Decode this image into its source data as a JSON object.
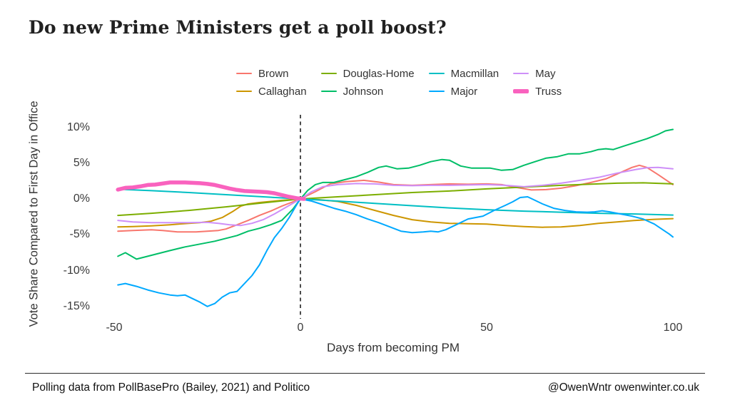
{
  "title": "Do new Prime Ministers get a poll boost?",
  "footer": {
    "left": "Polling data from PollBasePro (Bailey, 2021) and Politico",
    "right": "@OwenWntr owenwinter.co.uk"
  },
  "chart_data": {
    "type": "line",
    "title": "Do new Prime Ministers get a poll boost?",
    "xlabel": "Days from becoming PM",
    "ylabel": "Vote Share Compared to First Day in Office",
    "x_range_days": [
      -50,
      100
    ],
    "y_range_pct": [
      -15,
      10
    ],
    "grid": false,
    "background": "#ffffff",
    "legend_position": "top",
    "reference_line": {
      "axis": "x",
      "value": 0,
      "style": "dashed",
      "color": "#000000"
    },
    "x_ticks": [
      {
        "value": -50,
        "label": "-50"
      },
      {
        "value": 0,
        "label": "0"
      },
      {
        "value": 50,
        "label": "50"
      },
      {
        "value": 100,
        "label": "100"
      }
    ],
    "y_ticks": [
      {
        "value": 10,
        "label": "10%"
      },
      {
        "value": 5,
        "label": "5%"
      },
      {
        "value": 0,
        "label": "0%"
      },
      {
        "value": -5,
        "label": "-5%"
      },
      {
        "value": -10,
        "label": "-10%"
      },
      {
        "value": -15,
        "label": "-15%"
      }
    ],
    "series": [
      {
        "name": "Brown",
        "color": "#F8766D",
        "width": 2,
        "points": [
          [
            -49,
            -4.5
          ],
          [
            -45,
            -4.4
          ],
          [
            -40,
            -4.3
          ],
          [
            -37,
            -4.4
          ],
          [
            -33,
            -4.6
          ],
          [
            -28,
            -4.6
          ],
          [
            -25,
            -4.5
          ],
          [
            -22,
            -4.4
          ],
          [
            -20,
            -4.2
          ],
          [
            -17,
            -3.6
          ],
          [
            -14,
            -3.0
          ],
          [
            -11,
            -2.3
          ],
          [
            -8,
            -1.7
          ],
          [
            -5,
            -1.0
          ],
          [
            -2,
            -0.4
          ],
          [
            0,
            0
          ],
          [
            4,
            1.0
          ],
          [
            8,
            2.1
          ],
          [
            12,
            2.4
          ],
          [
            17,
            2.6
          ],
          [
            21,
            2.35
          ],
          [
            25,
            2.0
          ],
          [
            30,
            1.9
          ],
          [
            35,
            2.0
          ],
          [
            40,
            2.1
          ],
          [
            45,
            2.05
          ],
          [
            50,
            2.1
          ],
          [
            54,
            2.0
          ],
          [
            58,
            1.6
          ],
          [
            62,
            1.25
          ],
          [
            66,
            1.3
          ],
          [
            70,
            1.5
          ],
          [
            74,
            1.85
          ],
          [
            78,
            2.3
          ],
          [
            82,
            2.8
          ],
          [
            86,
            3.7
          ],
          [
            89,
            4.4
          ],
          [
            91,
            4.7
          ],
          [
            93,
            4.4
          ],
          [
            96,
            3.4
          ],
          [
            98,
            2.7
          ],
          [
            100,
            2.0
          ]
        ]
      },
      {
        "name": "Callaghan",
        "color": "#CD9600",
        "width": 2,
        "points": [
          [
            -49,
            -3.9
          ],
          [
            -45,
            -3.85
          ],
          [
            -40,
            -3.75
          ],
          [
            -35,
            -3.6
          ],
          [
            -30,
            -3.4
          ],
          [
            -27,
            -3.3
          ],
          [
            -24,
            -3.1
          ],
          [
            -21,
            -2.6
          ],
          [
            -18,
            -1.7
          ],
          [
            -16,
            -1.0
          ],
          [
            -14,
            -0.7
          ],
          [
            -11,
            -0.5
          ],
          [
            -8,
            -0.35
          ],
          [
            -5,
            -0.2
          ],
          [
            0,
            0
          ],
          [
            5,
            -0.1
          ],
          [
            10,
            -0.35
          ],
          [
            15,
            -0.9
          ],
          [
            20,
            -1.6
          ],
          [
            25,
            -2.3
          ],
          [
            30,
            -2.9
          ],
          [
            35,
            -3.2
          ],
          [
            40,
            -3.4
          ],
          [
            45,
            -3.45
          ],
          [
            50,
            -3.5
          ],
          [
            55,
            -3.7
          ],
          [
            60,
            -3.85
          ],
          [
            65,
            -3.95
          ],
          [
            70,
            -3.9
          ],
          [
            75,
            -3.7
          ],
          [
            80,
            -3.4
          ],
          [
            85,
            -3.2
          ],
          [
            90,
            -3.0
          ],
          [
            95,
            -2.85
          ],
          [
            100,
            -2.75
          ]
        ]
      },
      {
        "name": "Douglas-Home",
        "color": "#7CAE00",
        "width": 2,
        "points": [
          [
            -49,
            -2.3
          ],
          [
            -40,
            -2.0
          ],
          [
            -30,
            -1.6
          ],
          [
            -20,
            -1.1
          ],
          [
            -10,
            -0.55
          ],
          [
            0,
            0
          ],
          [
            10,
            0.3
          ],
          [
            20,
            0.6
          ],
          [
            30,
            0.9
          ],
          [
            40,
            1.1
          ],
          [
            50,
            1.4
          ],
          [
            60,
            1.65
          ],
          [
            70,
            1.9
          ],
          [
            80,
            2.1
          ],
          [
            85,
            2.2
          ],
          [
            92,
            2.25
          ],
          [
            100,
            2.1
          ]
        ]
      },
      {
        "name": "Johnson",
        "color": "#00BE67",
        "width": 2,
        "points": [
          [
            -49,
            -8.0
          ],
          [
            -47,
            -7.5
          ],
          [
            -44,
            -8.4
          ],
          [
            -41,
            -8.0
          ],
          [
            -38,
            -7.6
          ],
          [
            -35,
            -7.2
          ],
          [
            -31,
            -6.7
          ],
          [
            -27,
            -6.3
          ],
          [
            -23,
            -5.9
          ],
          [
            -20,
            -5.5
          ],
          [
            -17,
            -5.1
          ],
          [
            -14,
            -4.5
          ],
          [
            -11,
            -4.1
          ],
          [
            -8,
            -3.6
          ],
          [
            -5,
            -3.0
          ],
          [
            -2,
            -1.4
          ],
          [
            0,
            0
          ],
          [
            2,
            1.2
          ],
          [
            4,
            2.0
          ],
          [
            6,
            2.3
          ],
          [
            9,
            2.3
          ],
          [
            12,
            2.7
          ],
          [
            15,
            3.1
          ],
          [
            18,
            3.7
          ],
          [
            21,
            4.4
          ],
          [
            23,
            4.6
          ],
          [
            26,
            4.2
          ],
          [
            29,
            4.3
          ],
          [
            32,
            4.7
          ],
          [
            35,
            5.2
          ],
          [
            38,
            5.5
          ],
          [
            40,
            5.4
          ],
          [
            43,
            4.6
          ],
          [
            46,
            4.3
          ],
          [
            48,
            4.3
          ],
          [
            51,
            4.3
          ],
          [
            54,
            4.0
          ],
          [
            57,
            4.1
          ],
          [
            60,
            4.7
          ],
          [
            63,
            5.2
          ],
          [
            66,
            5.7
          ],
          [
            69,
            5.9
          ],
          [
            72,
            6.3
          ],
          [
            75,
            6.3
          ],
          [
            78,
            6.6
          ],
          [
            80,
            6.9
          ],
          [
            82,
            7.0
          ],
          [
            84,
            6.9
          ],
          [
            87,
            7.4
          ],
          [
            90,
            7.9
          ],
          [
            93,
            8.4
          ],
          [
            96,
            9.0
          ],
          [
            98,
            9.5
          ],
          [
            100,
            9.7
          ]
        ]
      },
      {
        "name": "Macmillan",
        "color": "#00BFC4",
        "width": 2,
        "points": [
          [
            -49,
            1.35
          ],
          [
            -40,
            1.15
          ],
          [
            -30,
            0.9
          ],
          [
            -20,
            0.6
          ],
          [
            -10,
            0.3
          ],
          [
            0,
            0
          ],
          [
            10,
            -0.3
          ],
          [
            20,
            -0.62
          ],
          [
            30,
            -0.95
          ],
          [
            40,
            -1.25
          ],
          [
            50,
            -1.5
          ],
          [
            60,
            -1.7
          ],
          [
            70,
            -1.85
          ],
          [
            80,
            -2.0
          ],
          [
            90,
            -2.1
          ],
          [
            100,
            -2.25
          ]
        ]
      },
      {
        "name": "Major",
        "color": "#00A9FF",
        "width": 2,
        "points": [
          [
            -49,
            -12.0
          ],
          [
            -47,
            -11.8
          ],
          [
            -44,
            -12.2
          ],
          [
            -41,
            -12.7
          ],
          [
            -38,
            -13.1
          ],
          [
            -35,
            -13.4
          ],
          [
            -33,
            -13.5
          ],
          [
            -31,
            -13.4
          ],
          [
            -29,
            -13.9
          ],
          [
            -27,
            -14.4
          ],
          [
            -25,
            -15.0
          ],
          [
            -23,
            -14.6
          ],
          [
            -21,
            -13.7
          ],
          [
            -19,
            -13.1
          ],
          [
            -17,
            -12.9
          ],
          [
            -15,
            -11.8
          ],
          [
            -13,
            -10.7
          ],
          [
            -11,
            -9.2
          ],
          [
            -9,
            -7.2
          ],
          [
            -7,
            -5.4
          ],
          [
            -5,
            -4.1
          ],
          [
            -3,
            -2.6
          ],
          [
            -1,
            -0.8
          ],
          [
            0,
            0
          ],
          [
            3,
            -0.3
          ],
          [
            6,
            -0.8
          ],
          [
            9,
            -1.3
          ],
          [
            12,
            -1.7
          ],
          [
            15,
            -2.2
          ],
          [
            18,
            -2.8
          ],
          [
            21,
            -3.3
          ],
          [
            24,
            -3.9
          ],
          [
            27,
            -4.5
          ],
          [
            30,
            -4.7
          ],
          [
            33,
            -4.6
          ],
          [
            35,
            -4.5
          ],
          [
            37,
            -4.6
          ],
          [
            39,
            -4.3
          ],
          [
            41,
            -3.8
          ],
          [
            43,
            -3.3
          ],
          [
            45,
            -2.8
          ],
          [
            47,
            -2.6
          ],
          [
            49,
            -2.4
          ],
          [
            52,
            -1.6
          ],
          [
            55,
            -0.9
          ],
          [
            57,
            -0.4
          ],
          [
            59,
            0.2
          ],
          [
            61,
            0.3
          ],
          [
            63,
            -0.2
          ],
          [
            65,
            -0.7
          ],
          [
            68,
            -1.3
          ],
          [
            71,
            -1.6
          ],
          [
            74,
            -1.8
          ],
          [
            77,
            -1.85
          ],
          [
            79,
            -1.8
          ],
          [
            81,
            -1.65
          ],
          [
            83,
            -1.8
          ],
          [
            86,
            -2.1
          ],
          [
            89,
            -2.4
          ],
          [
            92,
            -2.8
          ],
          [
            95,
            -3.5
          ],
          [
            97,
            -4.2
          ],
          [
            99,
            -4.9
          ],
          [
            100,
            -5.3
          ]
        ]
      },
      {
        "name": "May",
        "color": "#CE8FF8",
        "width": 2,
        "points": [
          [
            -49,
            -3.0
          ],
          [
            -45,
            -3.2
          ],
          [
            -40,
            -3.3
          ],
          [
            -35,
            -3.3
          ],
          [
            -30,
            -3.3
          ],
          [
            -25,
            -3.25
          ],
          [
            -22,
            -3.4
          ],
          [
            -19,
            -3.6
          ],
          [
            -16,
            -3.7
          ],
          [
            -13,
            -3.4
          ],
          [
            -10,
            -2.9
          ],
          [
            -7,
            -2.1
          ],
          [
            -4,
            -1.2
          ],
          [
            -2,
            -0.6
          ],
          [
            0,
            0
          ],
          [
            3,
            1.0
          ],
          [
            6,
            1.7
          ],
          [
            10,
            2.0
          ],
          [
            15,
            2.15
          ],
          [
            20,
            2.1
          ],
          [
            25,
            1.9
          ],
          [
            30,
            1.85
          ],
          [
            35,
            1.9
          ],
          [
            40,
            1.9
          ],
          [
            45,
            1.95
          ],
          [
            50,
            2.0
          ],
          [
            55,
            1.9
          ],
          [
            60,
            1.7
          ],
          [
            65,
            1.9
          ],
          [
            70,
            2.2
          ],
          [
            75,
            2.6
          ],
          [
            80,
            3.0
          ],
          [
            85,
            3.6
          ],
          [
            90,
            4.1
          ],
          [
            93,
            4.35
          ],
          [
            96,
            4.4
          ],
          [
            100,
            4.2
          ]
        ]
      },
      {
        "name": "Truss",
        "color": "#F962BE",
        "width": 5.5,
        "points": [
          [
            -49,
            1.3
          ],
          [
            -47,
            1.55
          ],
          [
            -45,
            1.6
          ],
          [
            -43,
            1.75
          ],
          [
            -41,
            1.95
          ],
          [
            -39,
            2.0
          ],
          [
            -37,
            2.15
          ],
          [
            -35,
            2.3
          ],
          [
            -33,
            2.3
          ],
          [
            -31,
            2.3
          ],
          [
            -29,
            2.25
          ],
          [
            -27,
            2.2
          ],
          [
            -25,
            2.1
          ],
          [
            -23,
            1.95
          ],
          [
            -21,
            1.7
          ],
          [
            -19,
            1.45
          ],
          [
            -17,
            1.25
          ],
          [
            -15,
            1.1
          ],
          [
            -13,
            1.05
          ],
          [
            -11,
            1.0
          ],
          [
            -9,
            0.95
          ],
          [
            -7,
            0.8
          ],
          [
            -5,
            0.55
          ],
          [
            -3,
            0.3
          ],
          [
            -1,
            0.1
          ],
          [
            1,
            0.0
          ]
        ]
      }
    ]
  }
}
